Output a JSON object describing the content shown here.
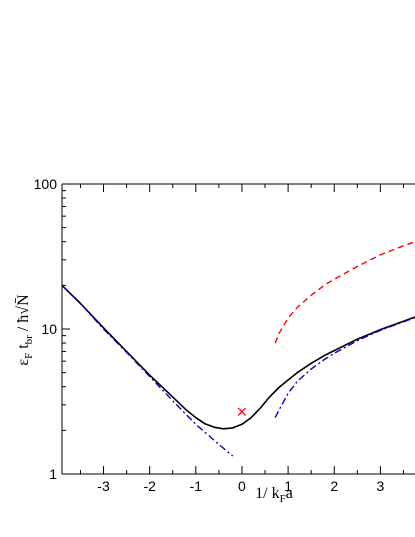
{
  "chart_data": {
    "type": "line",
    "title": "",
    "xlabel": "1/ k_F a",
    "ylabel": "ε_F t_br / ħ√N̄",
    "xlim": [
      -3.9,
      3.75
    ],
    "ylim": [
      1,
      100
    ],
    "yscale": "log",
    "grid": false,
    "x_ticks": [
      -3,
      -2,
      -1,
      0,
      1,
      2,
      3
    ],
    "x_tick_labels": [
      "-3",
      "-2",
      "-1",
      "0",
      "1",
      "2",
      "3"
    ],
    "y_ticks": [
      1,
      10,
      100
    ],
    "y_tick_labels": [
      "1",
      "10",
      "100"
    ],
    "series": [
      {
        "style": "solid",
        "color": "#000000",
        "x": [
          -3.9,
          -3.5,
          -3.0,
          -2.5,
          -2.0,
          -1.5,
          -1.2,
          -1.0,
          -0.8,
          -0.6,
          -0.4,
          -0.2,
          0.0,
          0.2,
          0.4,
          0.6,
          0.8,
          1.0,
          1.2,
          1.5,
          1.8,
          2.0,
          2.5,
          3.0,
          3.5,
          3.75
        ],
        "y": [
          20.0,
          15.0,
          10.2,
          7.0,
          4.8,
          3.4,
          2.75,
          2.45,
          2.22,
          2.1,
          2.05,
          2.08,
          2.2,
          2.45,
          2.85,
          3.4,
          3.95,
          4.45,
          5.0,
          5.8,
          6.6,
          7.1,
          8.5,
          9.9,
          11.3,
          12.1
        ]
      },
      {
        "style": "dash-dot",
        "color": "#0000cc",
        "x": [
          -3.9,
          -3.5,
          -3.0,
          -2.5,
          -2.0,
          -1.5,
          -1.0,
          -0.5,
          -0.2
        ],
        "y": [
          20.0,
          15.0,
          10.0,
          6.9,
          4.7,
          3.2,
          2.2,
          1.6,
          1.33
        ]
      },
      {
        "style": "dash-dot",
        "color": "#0000cc",
        "x": [
          0.72,
          0.8,
          1.0,
          1.2,
          1.5,
          1.8,
          2.0,
          2.5,
          3.0,
          3.5,
          3.75
        ],
        "y": [
          2.45,
          2.75,
          3.6,
          4.35,
          5.3,
          6.2,
          6.8,
          8.3,
          9.8,
          11.2,
          12.0
        ]
      },
      {
        "style": "dashed",
        "color": "#ff0000",
        "x": [
          0.72,
          0.8,
          1.0,
          1.2,
          1.5,
          1.8,
          2.0,
          2.5,
          3.0,
          3.5,
          3.75
        ],
        "y": [
          8.0,
          9.3,
          11.9,
          14.1,
          17.1,
          20.2,
          22.0,
          27.0,
          32.5,
          37.5,
          40.0
        ]
      }
    ],
    "markers": [
      {
        "symbol": "×",
        "color": "#ff0000",
        "x": 0.0,
        "y": 2.7
      }
    ]
  }
}
